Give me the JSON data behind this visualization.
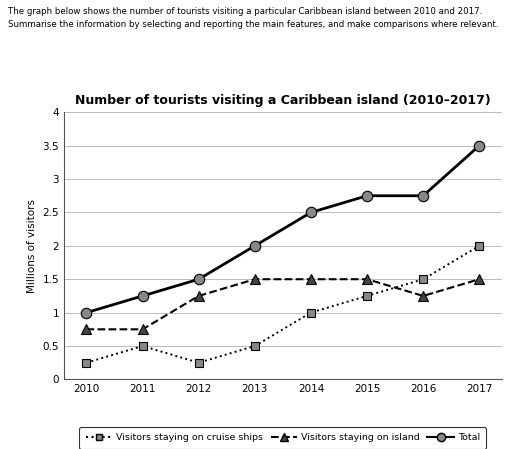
{
  "title": "Number of tourists visiting a Caribbean island (2010–2017)",
  "header_line1": "The graph below shows the number of tourists visiting a particular Caribbean island between 2010 and 2017.",
  "header_line2": "Summarise the information by selecting and reporting the main features, and make comparisons where relevant.",
  "ylabel": "Millions of visitors",
  "years": [
    2010,
    2011,
    2012,
    2013,
    2014,
    2015,
    2016,
    2017
  ],
  "cruise": [
    0.25,
    0.5,
    0.25,
    0.5,
    1.0,
    1.25,
    1.5,
    2.0
  ],
  "island": [
    0.75,
    0.75,
    1.25,
    1.5,
    1.5,
    1.5,
    1.25,
    1.5
  ],
  "total": [
    1.0,
    1.25,
    1.5,
    2.0,
    2.5,
    2.75,
    2.75,
    3.5
  ],
  "ylim": [
    0,
    4
  ],
  "yticks": [
    0,
    0.5,
    1.0,
    1.5,
    2.0,
    2.5,
    3.0,
    3.5,
    4.0
  ],
  "legend_cruise": "Visitors staying on cruise ships",
  "legend_island": "Visitors staying on island",
  "legend_total": "Total",
  "marker_gray": "#888888",
  "line_color": "#000000",
  "grid_color": "#bbbbbb"
}
